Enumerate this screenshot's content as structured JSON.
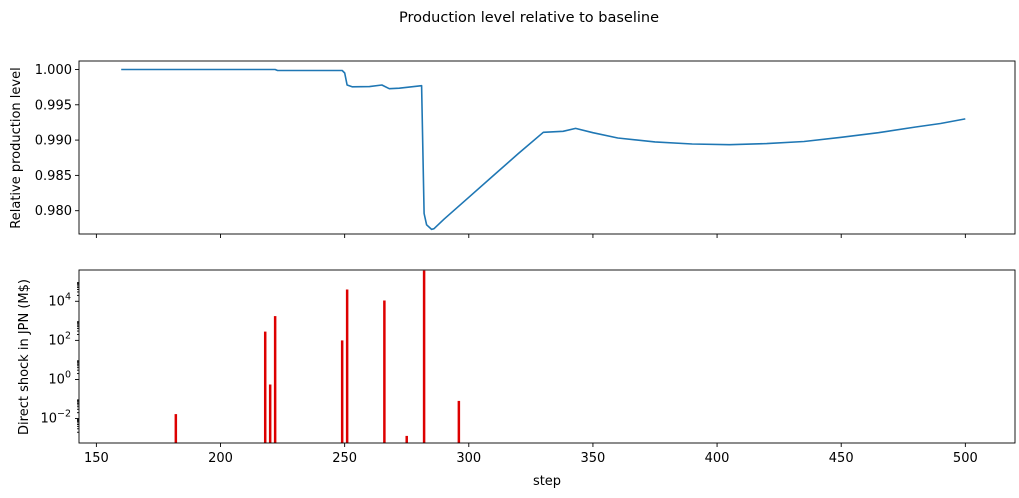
{
  "figure": {
    "title": "Production level relative to baseline"
  },
  "colors": {
    "line": "#1f77b4",
    "bars": "#dd0000",
    "axes": "#000000",
    "background": "#ffffff"
  },
  "chart_data": [
    {
      "type": "line",
      "ylabel": "Relative production level",
      "xlabel": "",
      "xlim": [
        143,
        520
      ],
      "ylim": [
        0.9767,
        1.0012
      ],
      "x_ticks": [
        150,
        200,
        250,
        300,
        350,
        400,
        450,
        500
      ],
      "x_tick_labels_shown": false,
      "y_ticks": [
        {
          "value": 0.98,
          "label": "0.980"
        },
        {
          "value": 0.985,
          "label": "0.985"
        },
        {
          "value": 0.99,
          "label": "0.990"
        },
        {
          "value": 0.995,
          "label": "0.995"
        },
        {
          "value": 1.0,
          "label": "1.000"
        }
      ],
      "grid": false,
      "series": [
        {
          "x": [
            160,
            200,
            222,
            223,
            249,
            250,
            251,
            253,
            260,
            265,
            268,
            272,
            281,
            282,
            283,
            285,
            286,
            290,
            300,
            310,
            320,
            330,
            338,
            343,
            350,
            360,
            375,
            390,
            405,
            420,
            435,
            450,
            465,
            480,
            490,
            500
          ],
          "y": [
            1.0,
            1.0,
            1.0,
            0.99985,
            0.99985,
            0.9995,
            0.9978,
            0.99755,
            0.99758,
            0.9978,
            0.99728,
            0.99735,
            0.9977,
            0.9796,
            0.978,
            0.97735,
            0.97745,
            0.9788,
            0.9819,
            0.985,
            0.9881,
            0.9911,
            0.99125,
            0.99165,
            0.99105,
            0.9903,
            0.98975,
            0.98945,
            0.98935,
            0.9895,
            0.9898,
            0.9904,
            0.99105,
            0.99185,
            0.99235,
            0.993
          ]
        }
      ]
    },
    {
      "type": "bar",
      "ylabel": "Direct shock in JPN (M$)",
      "xlabel": "step",
      "xlim": [
        143,
        520
      ],
      "yscale": "log",
      "ylim_log10": [
        -3.25,
        5.6
      ],
      "x_ticks": [
        {
          "value": 150,
          "label": "150"
        },
        {
          "value": 200,
          "label": "200"
        },
        {
          "value": 250,
          "label": "250"
        },
        {
          "value": 300,
          "label": "300"
        },
        {
          "value": 350,
          "label": "350"
        },
        {
          "value": 400,
          "label": "400"
        },
        {
          "value": 450,
          "label": "450"
        },
        {
          "value": 500,
          "label": "500"
        }
      ],
      "y_ticks": [
        {
          "exp": -2,
          "label": "10",
          "sup": "−2"
        },
        {
          "exp": 0,
          "label": "10",
          "sup": "0"
        },
        {
          "exp": 2,
          "label": "10",
          "sup": "2"
        },
        {
          "exp": 4,
          "label": "10",
          "sup": "4"
        }
      ],
      "grid": false,
      "x": [
        182,
        218,
        220,
        222,
        249,
        251,
        266,
        275,
        282,
        296
      ],
      "values": [
        0.017,
        280,
        0.55,
        1750,
        100,
        40000,
        11000,
        0.0013,
        370000,
        0.08
      ]
    }
  ]
}
